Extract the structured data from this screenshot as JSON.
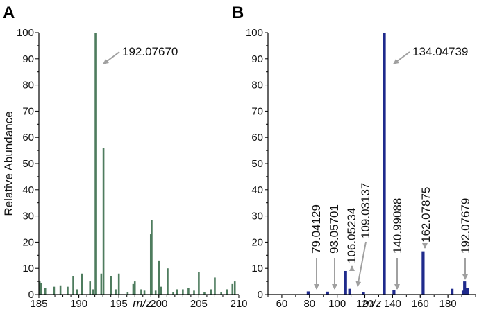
{
  "chart_data": [
    {
      "type": "bar",
      "panel_label": "A",
      "xlabel": "m/z",
      "ylabel": "Relative Abundance",
      "xlim": [
        185,
        210
      ],
      "ylim": [
        0,
        100
      ],
      "xticks": [
        185,
        190,
        195,
        200,
        205,
        210
      ],
      "yticks": [
        0,
        10,
        20,
        30,
        40,
        50,
        60,
        70,
        80,
        90,
        100
      ],
      "color": "#4e7c5e",
      "x": [
        185.1,
        185.3,
        185.8,
        186.9,
        187.7,
        188.6,
        189.3,
        189.8,
        190.4,
        191.4,
        191.8,
        192.08,
        192.8,
        193.08,
        194.0,
        194.6,
        195.0,
        196.1,
        196.8,
        197.0,
        197.8,
        198.2,
        199.0,
        199.1,
        199.6,
        200.0,
        200.3,
        201.1,
        201.8,
        202.3,
        203.0,
        203.7,
        204.4,
        205.0,
        205.7,
        206.5,
        207.0,
        207.8,
        208.5,
        209.2,
        209.5
      ],
      "values": [
        5,
        4.5,
        2.5,
        3,
        3.5,
        3,
        7,
        2,
        8,
        5,
        2,
        100,
        8,
        56,
        7,
        2,
        8,
        1,
        4,
        5,
        2,
        1.5,
        23,
        28.5,
        1.5,
        13,
        3,
        10,
        1,
        2,
        2,
        2.5,
        1.5,
        8.5,
        1,
        2,
        6.5,
        1,
        2,
        4,
        5
      ],
      "annotations": [
        {
          "label": "192.07670",
          "x": 192.0767,
          "y": 100
        }
      ]
    },
    {
      "type": "bar",
      "panel_label": "B",
      "xlabel": "m/z",
      "ylabel": "",
      "xlim": [
        50,
        200
      ],
      "ylim": [
        0,
        100
      ],
      "xticks": [
        60,
        80,
        100,
        120,
        140,
        160,
        180
      ],
      "yticks": [
        0,
        10,
        20,
        30,
        40,
        50,
        60,
        70,
        80,
        90,
        100
      ],
      "color": "#1f2a8c",
      "x": [
        79.04,
        93.06,
        106.05,
        109.03,
        119.0,
        134.05,
        141.0,
        162.08,
        183.0,
        191.0,
        192.08,
        194.0
      ],
      "values": [
        1.2,
        1.1,
        9,
        2.2,
        1,
        100,
        1.8,
        16.5,
        2.2,
        1.5,
        5,
        2.5
      ],
      "annotations": [
        {
          "label": "79.04129",
          "x": 79.04129,
          "y": 1.2
        },
        {
          "label": "93.05701",
          "x": 93.05701,
          "y": 1.1
        },
        {
          "label": "106.05234",
          "x": 106.05234,
          "y": 9
        },
        {
          "label": "109.03137",
          "x": 109.03137,
          "y": 2.2
        },
        {
          "label": "134.04739",
          "x": 134.04739,
          "y": 100
        },
        {
          "label": "140.99088",
          "x": 140.99088,
          "y": 1.8
        },
        {
          "label": "162.07875",
          "x": 162.07875,
          "y": 16.5
        },
        {
          "label": "192.07679",
          "x": 192.07679,
          "y": 5
        }
      ]
    }
  ]
}
